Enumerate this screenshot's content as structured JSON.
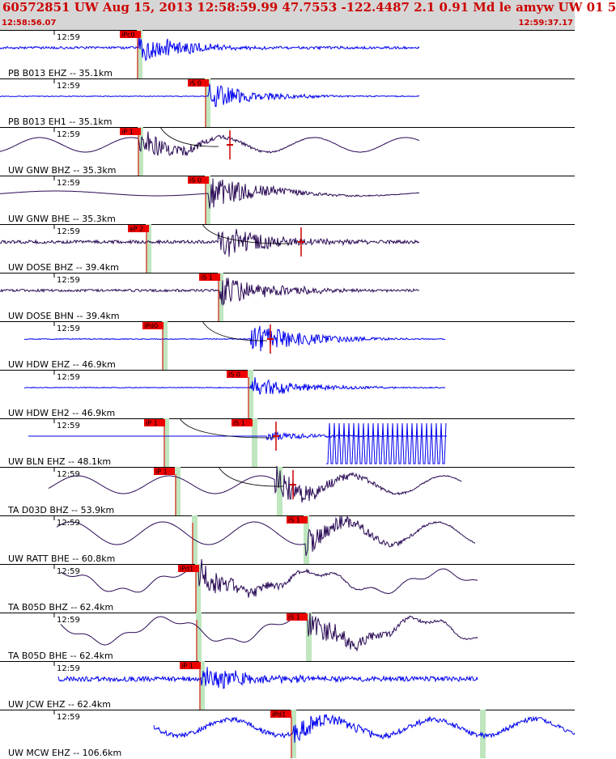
{
  "header": {
    "title": "60572851 UW Aug 15, 2013 12:58:59.99    47.7553 -122.4487  2.1 0.91 Md le amyw UW 01    5",
    "start_time": "12:58:56.07",
    "end_time": "12:59:37.17"
  },
  "colors": {
    "header_bg": "#d6d6d6",
    "header_text": "#cc0000",
    "trace_blue": "#0000ee",
    "trace_dark": "#2a0a55",
    "pick_box": "#ee0000",
    "pick_band": "#bfe6bf",
    "residual": "#cc0000"
  },
  "channels": [
    {
      "label": "PB B013 EHZ -- 35.1km",
      "tick": "12:59",
      "pick": "iPc0",
      "pick_type": "P",
      "color": "blue"
    },
    {
      "label": "PB B013 EH1 -- 35.1km",
      "tick": "12:59",
      "pick": "iS 0",
      "pick_type": "S",
      "color": "blue"
    },
    {
      "label": "UW GNW BHZ -- 35.3km",
      "tick": "12:59",
      "pick": "iP 1",
      "pick_type": "P",
      "color": "dark"
    },
    {
      "label": "UW GNW BHE -- 35.3km",
      "tick": "12:59",
      "pick": "iS 0",
      "pick_type": "S",
      "color": "dark"
    },
    {
      "label": "UW DOSE BHZ -- 39.4km",
      "tick": "12:59",
      "pick": "eP 2",
      "pick_type": "P",
      "color": "dark"
    },
    {
      "label": "UW DOSE BHN -- 39.4km",
      "tick": "12:59",
      "pick": "iS 1",
      "pick_type": "S",
      "color": "dark"
    },
    {
      "label": "UW HDW EHZ -- 46.9km",
      "tick": "12:59",
      "pick": "iPd0",
      "pick_type": "P",
      "color": "blue"
    },
    {
      "label": "UW HDW EH2 -- 46.9km",
      "tick": "12:59",
      "pick": "iS 0",
      "pick_type": "S",
      "color": "blue"
    },
    {
      "label": "UW BLN EHZ -- 48.1km",
      "tick": "12:59",
      "pick": "iP 1",
      "pick2": "iS 1",
      "pick_type": "P",
      "color": "blue"
    },
    {
      "label": "TA D03D BHZ -- 53.9km",
      "tick": "12:59",
      "pick": "iP 1",
      "pick_type": "P",
      "color": "dark"
    },
    {
      "label": "UW RATT BHE -- 60.8km",
      "tick": "12:59",
      "pick": "iS 1",
      "pick_type": "S",
      "color": "dark"
    },
    {
      "label": "TA B05D BHZ -- 62.4km",
      "tick": "12:59",
      "pick": "iPd1",
      "pick_type": "P",
      "color": "dark"
    },
    {
      "label": "TA B05D BHE -- 62.4km",
      "tick": "12:59",
      "pick": "iS 1",
      "pick_type": "S",
      "color": "dark"
    },
    {
      "label": "UW JCW EHZ -- 62.4km",
      "tick": "12:59",
      "pick": "iP 1",
      "pick_type": "P",
      "color": "blue"
    },
    {
      "label": "UW MCW EHZ -- 106.6km",
      "tick": "12:59",
      "pick": "iPd1",
      "pick_type": "P",
      "color": "blue"
    }
  ]
}
